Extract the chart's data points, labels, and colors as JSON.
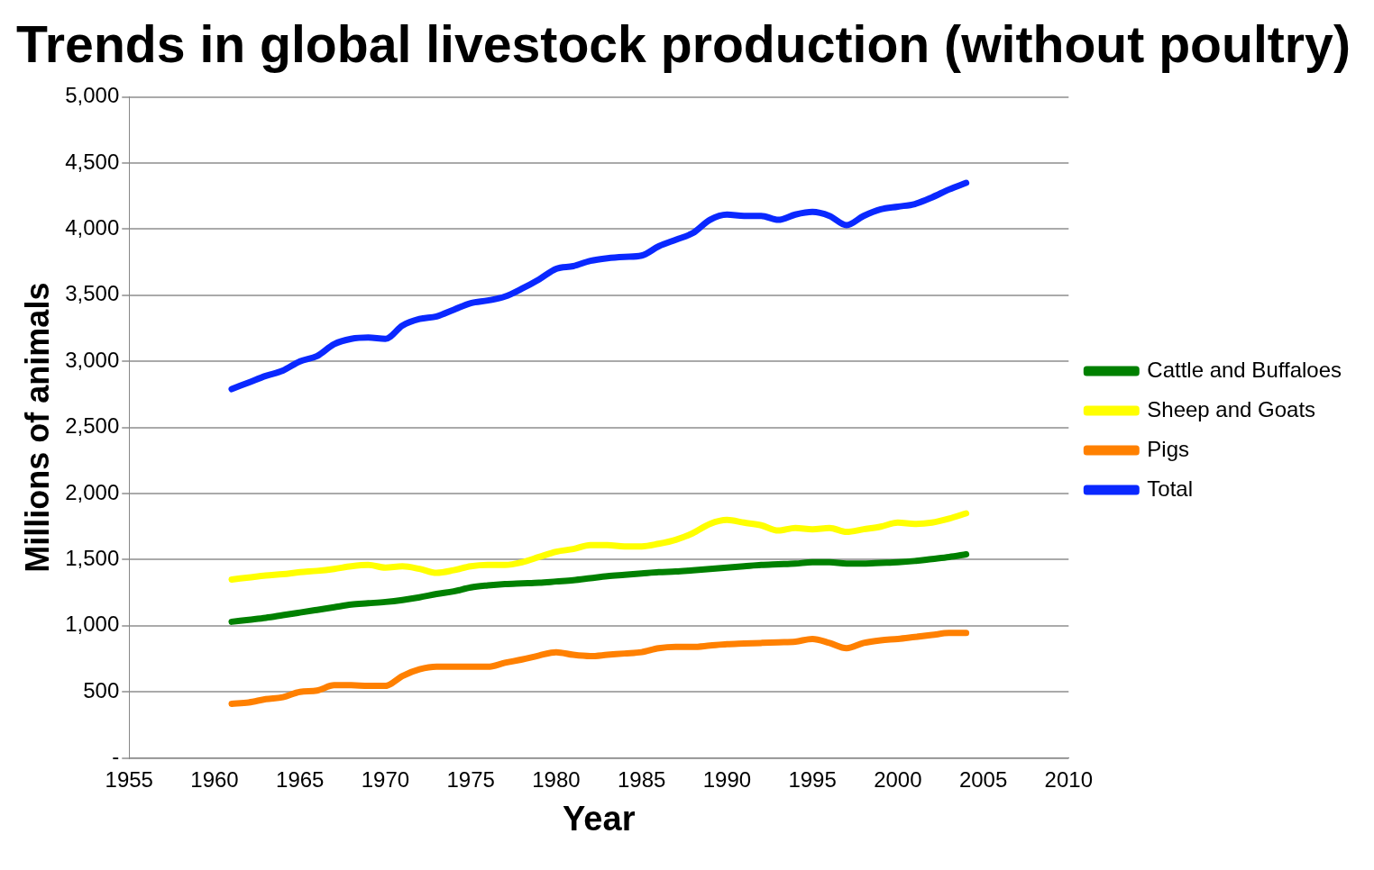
{
  "chart_data": {
    "type": "line",
    "title": "Trends in global livestock production (without poultry)",
    "xlabel": "Year",
    "ylabel": "Millions of animals",
    "x": [
      1961,
      1962,
      1963,
      1964,
      1965,
      1966,
      1967,
      1968,
      1969,
      1970,
      1971,
      1972,
      1973,
      1974,
      1975,
      1976,
      1977,
      1978,
      1979,
      1980,
      1981,
      1982,
      1983,
      1984,
      1985,
      1986,
      1987,
      1988,
      1989,
      1990,
      1991,
      1992,
      1993,
      1994,
      1995,
      1996,
      1997,
      1998,
      1999,
      2000,
      2001,
      2002,
      2003,
      2004
    ],
    "series": [
      {
        "name": "Cattle and Buffaloes",
        "color": "#008000",
        "values": [
          1030,
          1045,
          1060,
          1080,
          1100,
          1120,
          1140,
          1160,
          1170,
          1180,
          1195,
          1215,
          1240,
          1260,
          1290,
          1305,
          1315,
          1320,
          1325,
          1335,
          1345,
          1360,
          1375,
          1385,
          1395,
          1405,
          1410,
          1420,
          1430,
          1440,
          1450,
          1460,
          1465,
          1470,
          1480,
          1480,
          1470,
          1470,
          1475,
          1480,
          1490,
          1505,
          1520,
          1540
        ]
      },
      {
        "name": "Sheep and Goats",
        "color": "#ffff00",
        "values": [
          1350,
          1365,
          1380,
          1390,
          1405,
          1415,
          1430,
          1450,
          1460,
          1440,
          1450,
          1430,
          1400,
          1420,
          1450,
          1460,
          1460,
          1480,
          1520,
          1560,
          1580,
          1610,
          1610,
          1600,
          1600,
          1620,
          1650,
          1700,
          1770,
          1800,
          1780,
          1760,
          1720,
          1740,
          1730,
          1740,
          1710,
          1730,
          1750,
          1780,
          1770,
          1780,
          1810,
          1850
        ]
      },
      {
        "name": "Pigs",
        "color": "#ff8000",
        "values": [
          410,
          420,
          445,
          460,
          500,
          510,
          550,
          550,
          545,
          545,
          620,
          670,
          690,
          690,
          690,
          690,
          720,
          745,
          775,
          800,
          780,
          770,
          780,
          790,
          800,
          830,
          840,
          840,
          850,
          860,
          865,
          870,
          875,
          880,
          900,
          870,
          830,
          870,
          890,
          900,
          915,
          930,
          945,
          945
        ]
      },
      {
        "name": "Total",
        "color": "#0a28ff",
        "values": [
          2790,
          2840,
          2890,
          2930,
          3000,
          3040,
          3130,
          3170,
          3180,
          3170,
          3270,
          3320,
          3340,
          3390,
          3440,
          3460,
          3490,
          3550,
          3620,
          3700,
          3720,
          3760,
          3780,
          3790,
          3800,
          3870,
          3920,
          3970,
          4070,
          4110,
          4100,
          4100,
          4070,
          4110,
          4130,
          4100,
          4030,
          4100,
          4150,
          4170,
          4190,
          4240,
          4300,
          4350
        ]
      }
    ],
    "xlim": [
      1955,
      2010
    ],
    "xticks": [
      1955,
      1960,
      1965,
      1970,
      1975,
      1980,
      1985,
      1990,
      1995,
      2000,
      2005,
      2010
    ],
    "ylim": [
      0,
      5000
    ],
    "yticks": [
      {
        "value": 0,
        "label": "-"
      },
      {
        "value": 500,
        "label": "500"
      },
      {
        "value": 1000,
        "label": "1,000"
      },
      {
        "value": 1500,
        "label": "1,500"
      },
      {
        "value": 2000,
        "label": "2,000"
      },
      {
        "value": 2500,
        "label": "2,500"
      },
      {
        "value": 3000,
        "label": "3,000"
      },
      {
        "value": 3500,
        "label": "3,500"
      },
      {
        "value": 4000,
        "label": "4,000"
      },
      {
        "value": 4500,
        "label": "4,500"
      },
      {
        "value": 5000,
        "label": "5,000"
      }
    ],
    "grid": "y",
    "legend": "right",
    "marker": "none",
    "line_style": "solid"
  }
}
